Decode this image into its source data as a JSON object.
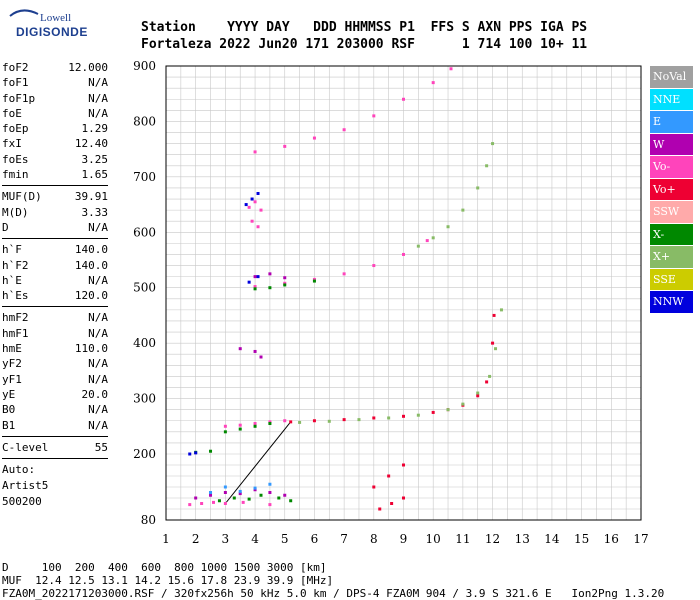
{
  "brand": {
    "line1": "Lowell",
    "line2": "DIGISONDE"
  },
  "header": {
    "line1": "Station    YYYY DAY   DDD HHMMSS P1  FFS S AXN PPS IGA PS",
    "line2": "Fortaleza 2022 Jun20 171 203000 RSF      1 714 100 10+ 11"
  },
  "params_group1": [
    {
      "label": "foF2",
      "value": "12.000"
    },
    {
      "label": "foF1",
      "value": "N/A"
    },
    {
      "label": "foF1p",
      "value": "N/A"
    },
    {
      "label": "foE",
      "value": "N/A"
    },
    {
      "label": "foEp",
      "value": "1.29"
    },
    {
      "label": "fxI",
      "value": "12.40"
    },
    {
      "label": "foEs",
      "value": "3.25"
    },
    {
      "label": "fmin",
      "value": "1.65"
    }
  ],
  "params_group2": [
    {
      "label": "MUF(D)",
      "value": "39.91"
    },
    {
      "label": "M(D)",
      "value": "3.33"
    },
    {
      "label": "D",
      "value": "N/A"
    }
  ],
  "params_group3": [
    {
      "label": "h`F",
      "value": "140.0"
    },
    {
      "label": "h`F2",
      "value": "140.0"
    },
    {
      "label": "h`E",
      "value": "N/A"
    },
    {
      "label": "h`Es",
      "value": "120.0"
    }
  ],
  "params_group4": [
    {
      "label": "hmF2",
      "value": "N/A"
    },
    {
      "label": "hmF1",
      "value": "N/A"
    },
    {
      "label": "hmE",
      "value": "110.0"
    },
    {
      "label": "yF2",
      "value": "N/A"
    },
    {
      "label": "yF1",
      "value": "N/A"
    },
    {
      "label": "yE",
      "value": "20.0"
    },
    {
      "label": "B0",
      "value": "N/A"
    },
    {
      "label": "B1",
      "value": "N/A"
    }
  ],
  "params_group5": [
    {
      "label": "C-level",
      "value": "55"
    }
  ],
  "auto": {
    "l1": "Auto:",
    "l2": "Artist5",
    "l3": "500200"
  },
  "legend": [
    {
      "label": "NoVal",
      "color": "#a0a0a0"
    },
    {
      "label": "NNE",
      "color": "#00e0ff"
    },
    {
      "label": "E",
      "color": "#3399ff"
    },
    {
      "label": "W",
      "color": "#b000b0"
    },
    {
      "label": "Vo-",
      "color": "#ff44bb"
    },
    {
      "label": "Vo+",
      "color": "#ee0033"
    },
    {
      "label": "SSW",
      "color": "#ffaaaa"
    },
    {
      "label": "X-",
      "color": "#008800"
    },
    {
      "label": "X+",
      "color": "#88bb66"
    },
    {
      "label": "SSE",
      "color": "#cccc00"
    },
    {
      "label": "NNW",
      "color": "#0000dd"
    }
  ],
  "footer": {
    "line1": "D     100  200  400  600  800 1000 1500 3000 [km]",
    "line2": "MUF  12.4 12.5 13.1 14.2 15.6 17.8 23.9 39.9 [MHz]",
    "line3": "FZA0M_2022171203000.RSF / 320fx256h 50 kHz 5.0 km / DPS-4 FZA0M 904 / 3.9 S 321.6 E   Ion2Png 1.3.20"
  },
  "chart_data": {
    "type": "scatter",
    "x_axis": {
      "min": 1,
      "max": 17,
      "ticks": [
        1,
        2,
        3,
        4,
        5,
        6,
        7,
        8,
        9,
        10,
        11,
        12,
        13,
        14,
        15,
        16,
        17
      ]
    },
    "y_axis": {
      "min": 80,
      "max": 900,
      "ticks": [
        80,
        200,
        300,
        400,
        500,
        600,
        700,
        800,
        900
      ]
    },
    "grid": true,
    "legend_position": "right",
    "series": [
      {
        "color": "#ee0033",
        "points": [
          [
            5.2,
            258
          ],
          [
            6,
            260
          ],
          [
            7,
            262
          ],
          [
            8,
            265
          ],
          [
            9,
            268
          ],
          [
            10,
            275
          ],
          [
            10.5,
            280
          ],
          [
            11,
            288
          ],
          [
            11.5,
            305
          ],
          [
            11.8,
            330
          ],
          [
            12,
            400
          ],
          [
            12.05,
            450
          ]
        ]
      },
      {
        "color": "#88bb66",
        "points": [
          [
            5.5,
            257
          ],
          [
            6.5,
            259
          ],
          [
            7.5,
            262
          ],
          [
            8.5,
            265
          ],
          [
            9.5,
            270
          ],
          [
            10.5,
            280
          ],
          [
            11,
            290
          ],
          [
            11.5,
            310
          ],
          [
            11.9,
            340
          ],
          [
            12.1,
            390
          ],
          [
            12.3,
            460
          ]
        ]
      },
      {
        "color": "#ff44bb",
        "points": [
          [
            3,
            250
          ],
          [
            3.5,
            252
          ],
          [
            4,
            255
          ],
          [
            4.5,
            258
          ],
          [
            5,
            260
          ],
          [
            4,
            502
          ],
          [
            5,
            508
          ],
          [
            6,
            515
          ],
          [
            7,
            525
          ],
          [
            8,
            540
          ],
          [
            9,
            560
          ],
          [
            9.8,
            585
          ]
        ]
      },
      {
        "color": "#88bb66",
        "points": [
          [
            9.5,
            575
          ],
          [
            10,
            590
          ],
          [
            10.5,
            610
          ],
          [
            11,
            640
          ],
          [
            11.5,
            680
          ],
          [
            11.8,
            720
          ],
          [
            12,
            760
          ]
        ]
      },
      {
        "color": "#ff44bb",
        "points": [
          [
            4,
            745
          ],
          [
            5,
            755
          ],
          [
            6,
            770
          ],
          [
            7,
            785
          ],
          [
            8,
            810
          ],
          [
            9,
            840
          ],
          [
            10,
            870
          ],
          [
            10.6,
            895
          ]
        ]
      },
      {
        "color": "#008800",
        "points": [
          [
            2,
            203
          ],
          [
            2.5,
            205
          ],
          [
            3,
            240
          ],
          [
            3.5,
            245
          ],
          [
            4,
            250
          ],
          [
            4.5,
            255
          ],
          [
            4,
            498
          ],
          [
            4.5,
            500
          ],
          [
            5,
            505
          ],
          [
            6,
            512
          ]
        ]
      },
      {
        "color": "#b000b0",
        "points": [
          [
            2,
            120
          ],
          [
            2.5,
            125
          ],
          [
            3,
            130
          ],
          [
            3.5,
            128
          ],
          [
            4,
            135
          ],
          [
            4.5,
            130
          ],
          [
            5,
            125
          ],
          [
            4,
            520
          ],
          [
            4.5,
            525
          ],
          [
            5,
            518
          ],
          [
            3.5,
            390
          ],
          [
            4,
            385
          ],
          [
            4.2,
            375
          ]
        ]
      },
      {
        "color": "#3399ff",
        "points": [
          [
            2.5,
            130
          ],
          [
            3,
            140
          ],
          [
            3.5,
            132
          ],
          [
            4,
            138
          ],
          [
            4.5,
            145
          ]
        ]
      },
      {
        "color": "#008800",
        "points": [
          [
            2.8,
            115
          ],
          [
            3.3,
            120
          ],
          [
            3.8,
            118
          ],
          [
            4.2,
            125
          ],
          [
            4.8,
            120
          ],
          [
            5.2,
            115
          ]
        ]
      },
      {
        "color": "#ff44bb",
        "points": [
          [
            1.8,
            108
          ],
          [
            2.2,
            110
          ],
          [
            2.6,
            112
          ],
          [
            3.0,
            110
          ],
          [
            3.6,
            112
          ],
          [
            4.5,
            108
          ]
        ]
      },
      {
        "color": "#0000dd",
        "points": [
          [
            1.8,
            200
          ],
          [
            2,
            202
          ],
          [
            3.8,
            510
          ],
          [
            4.1,
            520
          ],
          [
            3.7,
            650
          ],
          [
            3.9,
            660
          ],
          [
            4.1,
            670
          ]
        ]
      },
      {
        "color": "#ee0033",
        "points": [
          [
            8,
            140
          ],
          [
            8.5,
            160
          ],
          [
            9,
            180
          ],
          [
            8.2,
            100
          ],
          [
            8.6,
            110
          ],
          [
            9,
            120
          ]
        ]
      },
      {
        "color": "#ff44bb",
        "points": [
          [
            3.8,
            645
          ],
          [
            4,
            655
          ],
          [
            4.2,
            640
          ],
          [
            4.1,
            610
          ],
          [
            3.9,
            620
          ]
        ]
      }
    ],
    "trace_line": {
      "color": "#000000",
      "points": [
        [
          3,
          110
        ],
        [
          5.2,
          258
        ]
      ]
    }
  }
}
